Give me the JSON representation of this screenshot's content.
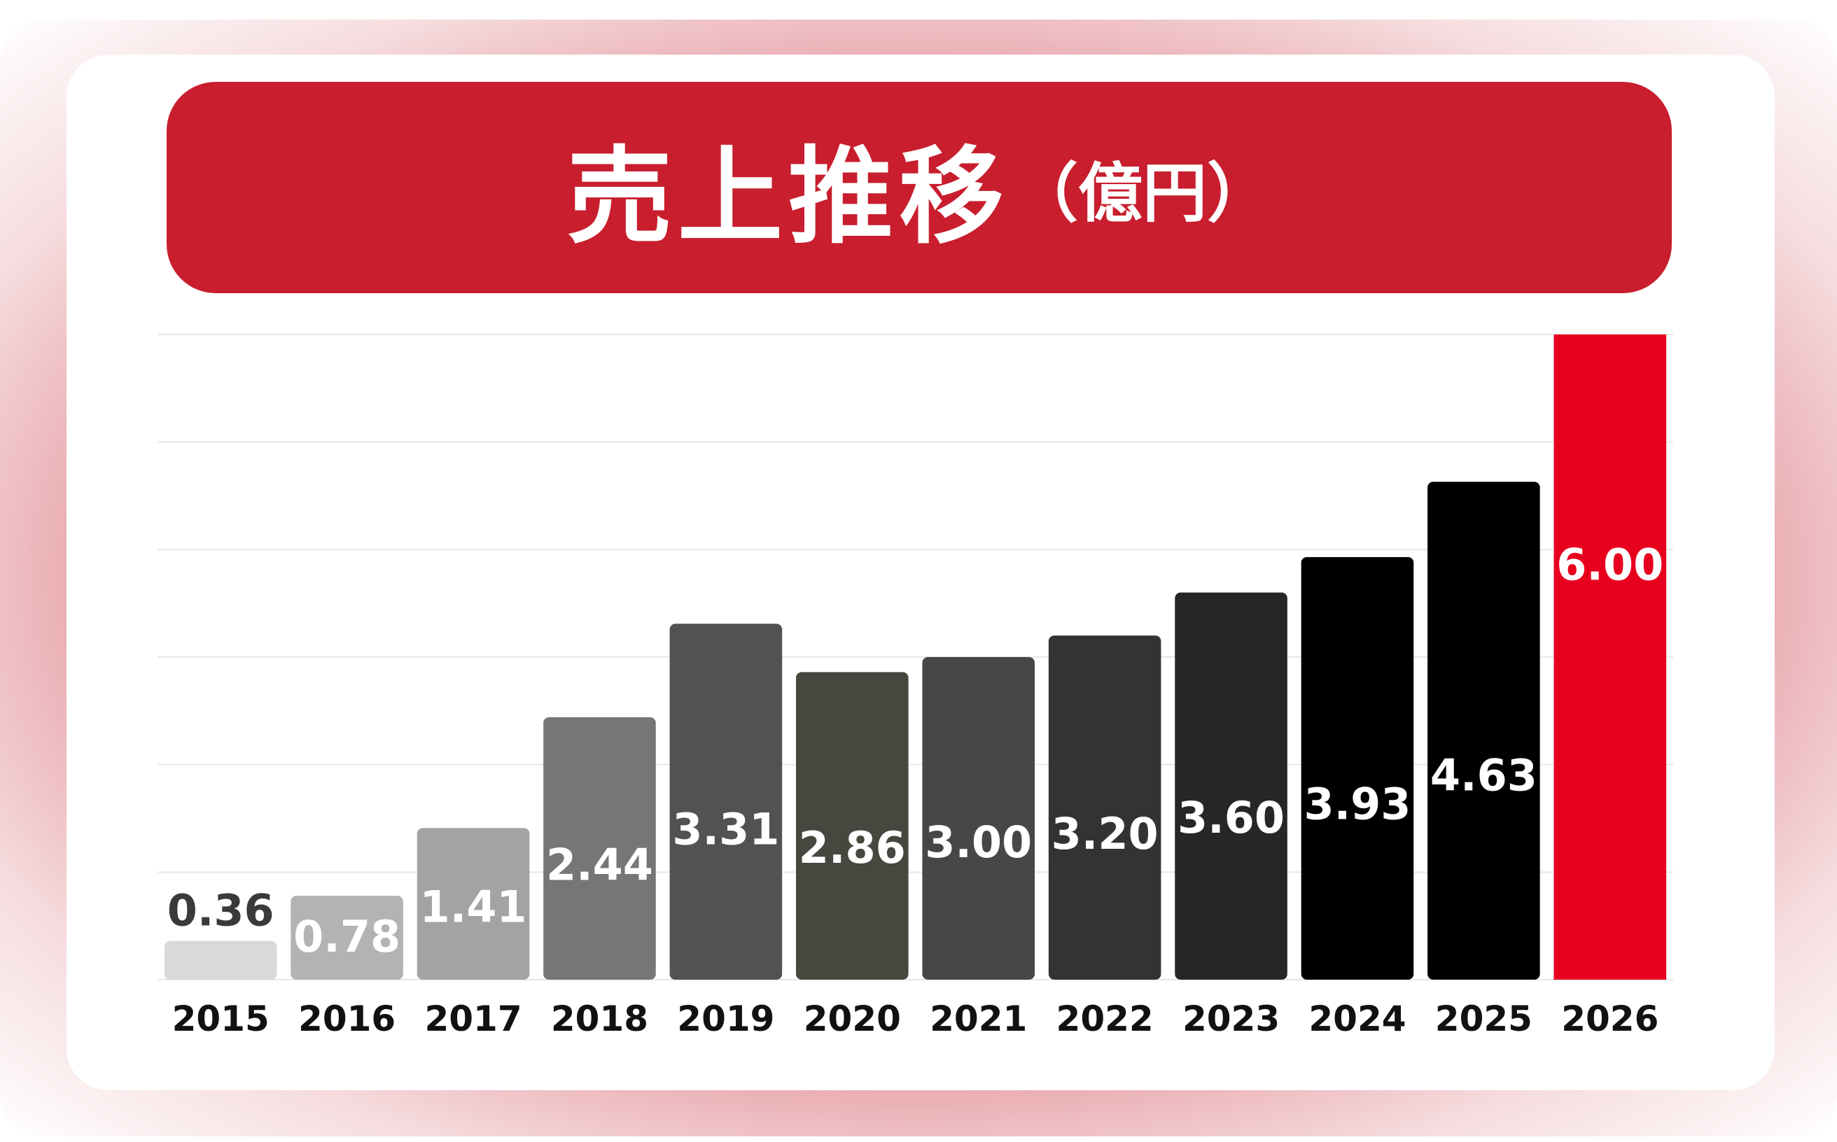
{
  "title": {
    "main": "売上推移",
    "unit": "（億円）"
  },
  "colors": {
    "accent": "#c81e2e",
    "highlight": "#e8001f"
  },
  "chart_data": {
    "type": "bar",
    "title": "売上推移（億円）",
    "xlabel": "",
    "ylabel": "",
    "ylim": [
      0,
      6
    ],
    "grid": true,
    "categories": [
      "2015",
      "2016",
      "2017",
      "2018",
      "2019",
      "2020",
      "2021",
      "2022",
      "2023",
      "2024",
      "2025",
      "2026"
    ],
    "values": [
      0.36,
      0.78,
      1.41,
      2.44,
      3.31,
      2.86,
      3.0,
      3.2,
      3.6,
      3.93,
      4.63,
      6.0
    ],
    "value_labels": [
      "0.36",
      "0.78",
      "1.41",
      "2.44",
      "3.31",
      "2.86",
      "3.00",
      "3.20",
      "3.60",
      "3.93",
      "4.63",
      "6.00"
    ],
    "bar_colors": [
      "#d9d9d9",
      "#b3b3b3",
      "#a3a3a3",
      "#767676",
      "#525252",
      "#47473f",
      "#474747",
      "#333333",
      "#262626",
      "#000000",
      "#000000",
      "#e8001f"
    ],
    "label_colors": [
      "#3a3a3a",
      "#ffffff",
      "#ffffff",
      "#ffffff",
      "#ffffff",
      "#ffffff",
      "#ffffff",
      "#ffffff",
      "#ffffff",
      "#ffffff",
      "#ffffff",
      "#ffffff"
    ]
  }
}
